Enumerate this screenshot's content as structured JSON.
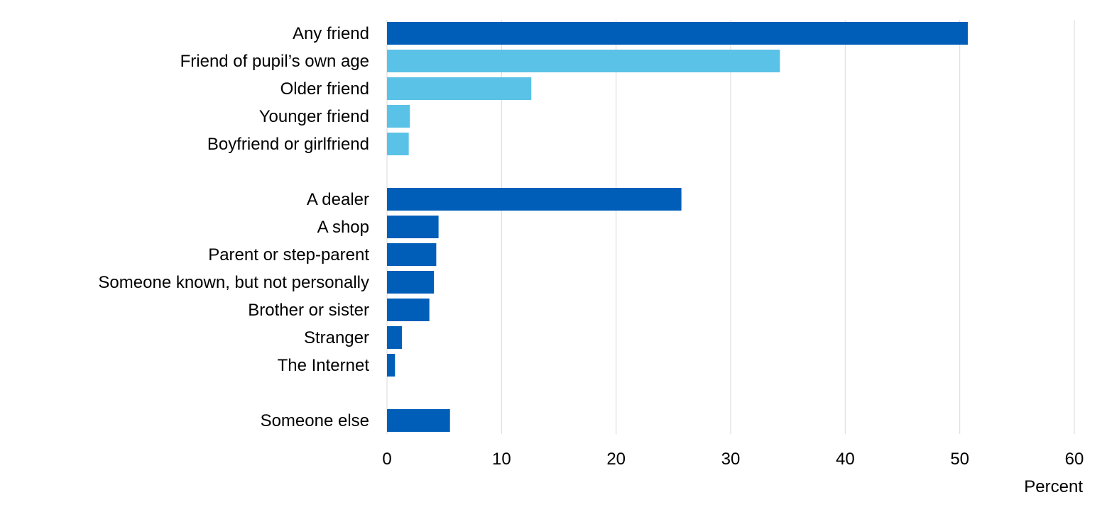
{
  "chart_data": {
    "type": "bar",
    "orientation": "horizontal",
    "title": "",
    "xlabel": "Percent",
    "ylabel": "",
    "xlim": [
      0,
      60
    ],
    "x_ticks": [
      0,
      10,
      20,
      30,
      40,
      50,
      60
    ],
    "x_tick_labels": [
      "0",
      "10",
      "20",
      "30",
      "40",
      "50",
      "60"
    ],
    "grid": "vertical gridlines on",
    "legend": "none",
    "colors": {
      "dark_blue": "#005EB8",
      "light_blue": "#5BC2E7",
      "gridline": "#D9D9D9"
    },
    "groups": [
      {
        "categories": [
          "Any friend",
          "Friend of pupil’s own age",
          "Older friend",
          "Younger friend",
          "Boyfriend or girlfriend"
        ],
        "values": [
          50.7,
          34.3,
          12.6,
          2.0,
          1.9
        ],
        "colors": [
          "dark_blue",
          "light_blue",
          "light_blue",
          "light_blue",
          "light_blue"
        ]
      },
      {
        "categories": [
          "A dealer",
          "A shop",
          "Parent or step-parent",
          "Someone known, but not personally",
          "Brother or sister",
          "Stranger",
          "The Internet"
        ],
        "values": [
          25.7,
          4.5,
          4.3,
          4.1,
          3.7,
          1.3,
          0.7
        ],
        "colors": [
          "dark_blue",
          "dark_blue",
          "dark_blue",
          "dark_blue",
          "dark_blue",
          "dark_blue",
          "dark_blue"
        ]
      },
      {
        "categories": [
          "Someone else"
        ],
        "values": [
          5.5
        ],
        "colors": [
          "dark_blue"
        ]
      }
    ]
  }
}
